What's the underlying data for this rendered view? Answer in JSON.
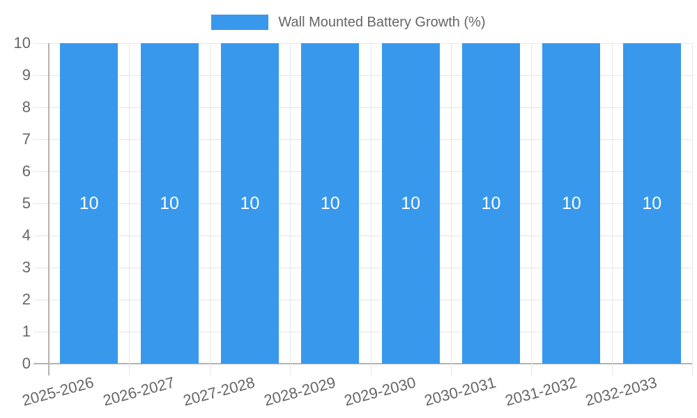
{
  "chart_data": {
    "type": "bar",
    "title": "Wall Mounted Battery Growth (%)",
    "legend": {
      "label": "Wall Mounted Battery Growth (%)",
      "position": "top"
    },
    "categories": [
      "2025-2026",
      "2026-2027",
      "2027-2028",
      "2028-2029",
      "2029-2030",
      "2030-2031",
      "2031-2032",
      "2032-2033"
    ],
    "values": [
      10,
      10,
      10,
      10,
      10,
      10,
      10,
      10
    ],
    "bar_value_labels": [
      "10",
      "10",
      "10",
      "10",
      "10",
      "10",
      "10",
      "10"
    ],
    "xlabel": "",
    "ylabel": "",
    "ylim": [
      0,
      10
    ],
    "yticks": [
      0,
      1,
      2,
      3,
      4,
      5,
      6,
      7,
      8,
      9,
      10
    ],
    "grid": true,
    "colors": {
      "bar": "#3898ec",
      "grid": "#e6e6e6",
      "axis": "#b3b3b3",
      "tick_text": "#666666",
      "bar_label": "#ffffff",
      "background": "#ffffff"
    }
  }
}
